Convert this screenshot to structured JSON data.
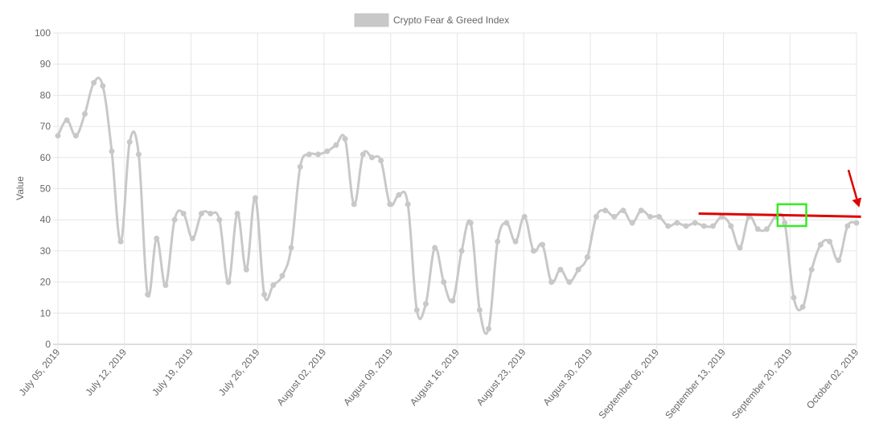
{
  "chart_data": {
    "type": "line",
    "ylabel": "Value",
    "ylim": [
      0,
      100
    ],
    "y_ticks": [
      "0",
      "10",
      "20",
      "30",
      "40",
      "50",
      "60",
      "70",
      "80",
      "90",
      "100"
    ],
    "x_tick_labels": [
      "July 05, 2019",
      "July 12, 2019",
      "July 19, 2019",
      "July 26, 2019",
      "August 02, 2019",
      "August 09, 2019",
      "August 16, 2019",
      "August 23, 2019",
      "August 30, 2019",
      "September 06, 2019",
      "September 13, 2019",
      "September 20, 2019",
      "October 02, 2019"
    ],
    "legend": {
      "position": "top"
    },
    "grid": true,
    "series": [
      {
        "name": "Crypto Fear & Greed Index",
        "color": "#c8c8c8",
        "values": [
          67,
          72,
          67,
          74,
          84,
          83,
          62,
          33,
          65,
          61,
          16,
          34,
          19,
          40,
          42,
          34,
          42,
          42,
          40,
          20,
          42,
          24,
          47,
          16,
          19,
          22,
          31,
          57,
          61,
          61,
          62,
          64,
          66,
          45,
          61,
          60,
          59,
          45,
          48,
          45,
          11,
          13,
          31,
          20,
          14,
          30,
          39,
          11,
          5,
          33,
          39,
          33,
          41,
          30,
          32,
          20,
          24,
          20,
          24,
          28,
          41,
          43,
          41,
          43,
          39,
          43,
          41,
          41,
          38,
          39,
          38,
          39,
          38,
          38,
          41,
          38,
          31,
          41,
          37,
          37,
          41,
          39,
          15,
          12,
          24,
          32,
          33,
          27,
          38,
          39
        ]
      }
    ],
    "annotations": [
      {
        "type": "line",
        "color": "#e00000",
        "from": [
          71.4,
          42
        ],
        "to": [
          89.5,
          41
        ]
      },
      {
        "type": "rectangle",
        "color": "#33ee22",
        "x_range": [
          80.2,
          83.4
        ],
        "y_range": [
          38,
          45
        ]
      },
      {
        "type": "arrow",
        "color": "#e00000",
        "from": [
          88.1,
          56
        ],
        "to": [
          89.3,
          44
        ]
      }
    ]
  }
}
